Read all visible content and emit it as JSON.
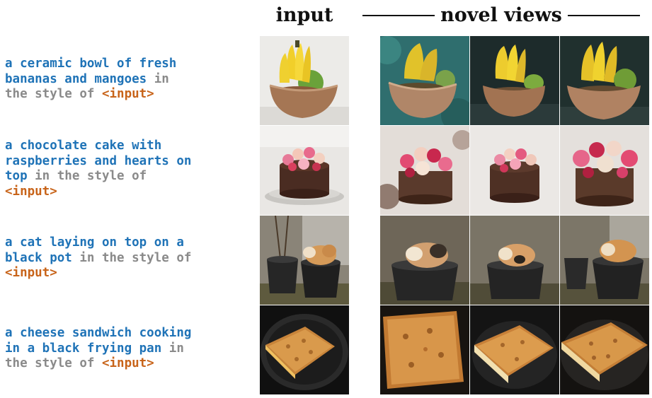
{
  "headers": {
    "input": "input",
    "novel_views": "novel views"
  },
  "rows": [
    {
      "prompt": "a ceramic bowl of fresh\nbananas and mangoes",
      "style_prefix": " in\nthe style of ",
      "tag": "<input>"
    },
    {
      "prompt": "a chocolate cake with\nraspberries and hearts on\ntop",
      "style_prefix": " in the style of\n",
      "tag": "<input>"
    },
    {
      "prompt": "a cat laying on top on a\nblack pot",
      "style_prefix": " in the style of\n",
      "tag": "<input>"
    },
    {
      "prompt": "a cheese sandwich cooking\nin a black frying pan",
      "style_prefix": " in\nthe style of ",
      "tag": "<input>"
    }
  ],
  "colors": {
    "prompt": "#1f73b7",
    "style_text": "#8a8a8a",
    "tag": "#c8641a"
  }
}
